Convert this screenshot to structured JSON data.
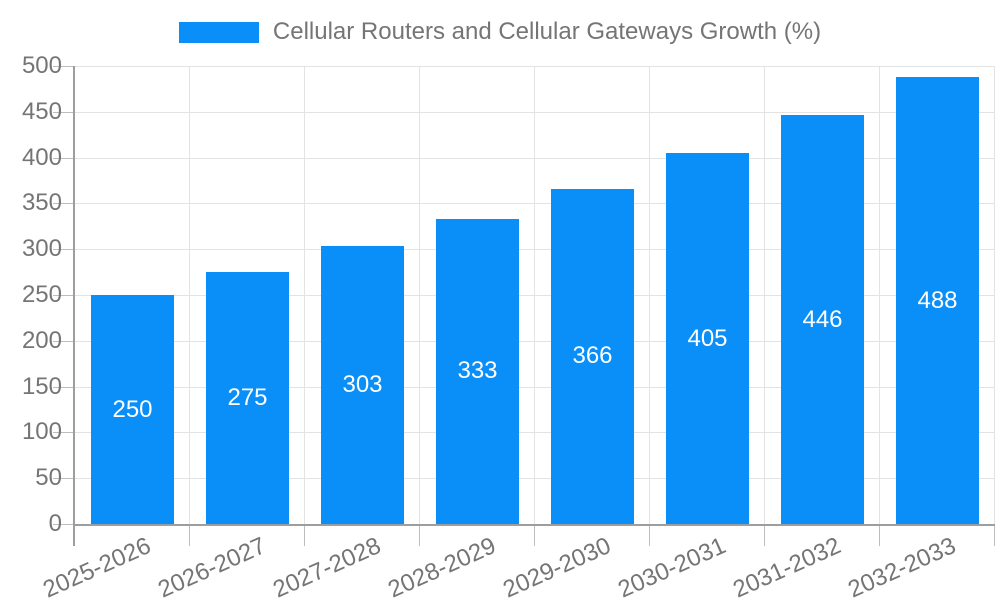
{
  "legend": {
    "label": "Cellular Routers and Cellular Gateways Growth (%)"
  },
  "chart_data": {
    "type": "bar",
    "title": "Cellular Routers and Cellular Gateways Growth (%)",
    "categories": [
      "2025-2026",
      "2026-2027",
      "2027-2028",
      "2028-2029",
      "2029-2030",
      "2030-2031",
      "2031-2032",
      "2032-2033"
    ],
    "values": [
      250,
      275,
      303,
      333,
      366,
      405,
      446,
      488
    ],
    "value_labels": [
      "250",
      "275",
      "303",
      "333",
      "366",
      "405",
      "446",
      "488"
    ],
    "xlabel": "",
    "ylabel": "",
    "ylim": [
      0,
      500
    ],
    "ytick_step": 50,
    "yticks": [
      0,
      50,
      100,
      150,
      200,
      250,
      300,
      350,
      400,
      450,
      500
    ],
    "grid": true,
    "legend_position": "top-center",
    "colors": {
      "bar": "#0a8ef8",
      "value_label": "#ffffff",
      "axis_text": "#757575",
      "axis_line": "#9e9e9e",
      "gridline": "#e3e3e3",
      "tick": "#bdbdbd",
      "background": "#ffffff"
    }
  }
}
